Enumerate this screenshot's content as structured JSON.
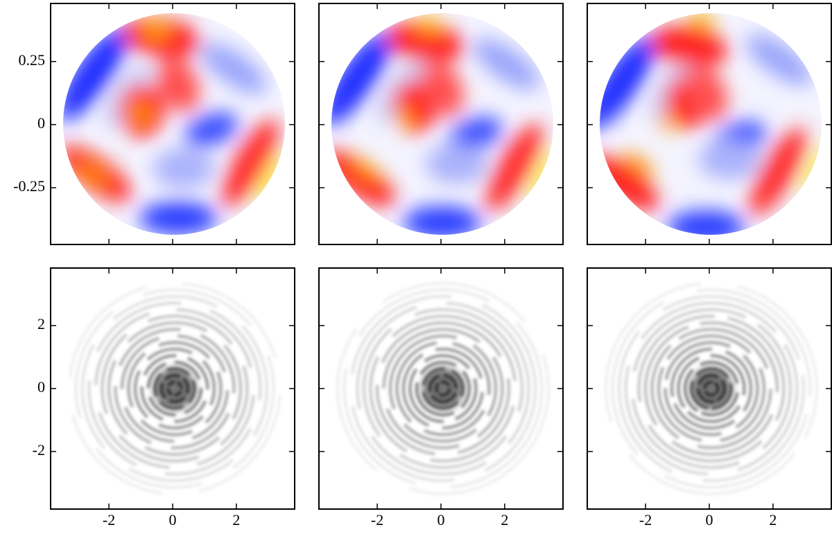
{
  "chart_data": [
    {
      "type": "image",
      "cmap": "bwr",
      "xlim": [
        -3.83,
        3.83
      ],
      "ylim": [
        -0.475,
        0.48
      ],
      "yticks": [
        0.25,
        0,
        -0.25
      ]
    },
    {
      "type": "image",
      "cmap": "bwr",
      "xlim": [
        -3.83,
        3.83
      ],
      "ylim": [
        -0.475,
        0.48
      ]
    },
    {
      "type": "image",
      "cmap": "bwr",
      "xlim": [
        -3.83,
        3.83
      ],
      "ylim": [
        -0.475,
        0.48
      ]
    },
    {
      "type": "image",
      "cmap": "gray",
      "xlim": [
        -3.83,
        3.83
      ],
      "ylim": [
        -3.83,
        3.83
      ],
      "yticks": [
        2,
        0,
        -2
      ],
      "xticks": [
        -2,
        0,
        2
      ]
    },
    {
      "type": "image",
      "cmap": "gray",
      "xlim": [
        -3.83,
        3.83
      ],
      "ylim": [
        -3.83,
        3.83
      ],
      "xticks": [
        -2,
        0,
        2
      ]
    },
    {
      "type": "image",
      "cmap": "gray",
      "xlim": [
        -3.83,
        3.83
      ],
      "ylim": [
        -3.83,
        3.83
      ],
      "xticks": [
        -2,
        0,
        2
      ]
    }
  ]
}
